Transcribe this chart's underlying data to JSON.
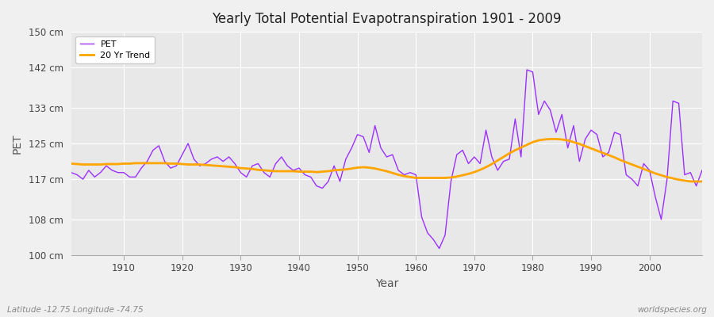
{
  "title": "Yearly Total Potential Evapotranspiration 1901 - 2009",
  "xlabel": "Year",
  "ylabel": "PET",
  "bottom_left_label": "Latitude -12.75 Longitude -74.75",
  "bottom_right_label": "worldspecies.org",
  "ylim": [
    100,
    150
  ],
  "yticks": [
    100,
    108,
    117,
    125,
    133,
    142,
    150
  ],
  "ytick_labels": [
    "100 cm",
    "108 cm",
    "117 cm",
    "125 cm",
    "133 cm",
    "142 cm",
    "150 cm"
  ],
  "xlim": [
    1901,
    2009
  ],
  "pet_color": "#9B30FF",
  "trend_color": "#FFA500",
  "bg_color": "#F0F0F0",
  "plot_bg_color": "#E8E8E8",
  "grid_color": "#FFFFFF",
  "legend_labels": [
    "PET",
    "20 Yr Trend"
  ],
  "xticks": [
    1910,
    1920,
    1930,
    1940,
    1950,
    1960,
    1970,
    1980,
    1990,
    2000
  ],
  "years": [
    1901,
    1902,
    1903,
    1904,
    1905,
    1906,
    1907,
    1908,
    1909,
    1910,
    1911,
    1912,
    1913,
    1914,
    1915,
    1916,
    1917,
    1918,
    1919,
    1920,
    1921,
    1922,
    1923,
    1924,
    1925,
    1926,
    1927,
    1928,
    1929,
    1930,
    1931,
    1932,
    1933,
    1934,
    1935,
    1936,
    1937,
    1938,
    1939,
    1940,
    1941,
    1942,
    1943,
    1944,
    1945,
    1946,
    1947,
    1948,
    1949,
    1950,
    1951,
    1952,
    1953,
    1954,
    1955,
    1956,
    1957,
    1958,
    1959,
    1960,
    1961,
    1962,
    1963,
    1964,
    1965,
    1966,
    1967,
    1968,
    1969,
    1970,
    1971,
    1972,
    1973,
    1974,
    1975,
    1976,
    1977,
    1978,
    1979,
    1980,
    1981,
    1982,
    1983,
    1984,
    1985,
    1986,
    1987,
    1988,
    1989,
    1990,
    1991,
    1992,
    1993,
    1994,
    1995,
    1996,
    1997,
    1998,
    1999,
    2000,
    2001,
    2002,
    2003,
    2004,
    2005,
    2006,
    2007,
    2008,
    2009
  ],
  "pet_values": [
    118.5,
    118.0,
    117.0,
    119.0,
    117.5,
    118.5,
    120.0,
    119.0,
    118.5,
    118.5,
    117.5,
    117.5,
    119.5,
    121.0,
    123.5,
    124.5,
    121.0,
    119.5,
    120.0,
    122.5,
    125.0,
    121.5,
    120.0,
    120.5,
    121.5,
    122.0,
    121.0,
    122.0,
    120.5,
    118.5,
    117.5,
    120.0,
    120.5,
    118.5,
    117.5,
    120.5,
    122.0,
    120.0,
    119.0,
    119.5,
    118.0,
    117.5,
    115.5,
    115.0,
    116.5,
    120.0,
    116.5,
    121.5,
    124.0,
    127.0,
    126.5,
    123.0,
    129.0,
    124.0,
    122.0,
    122.5,
    119.0,
    118.0,
    118.5,
    118.0,
    108.5,
    105.0,
    103.5,
    101.5,
    104.5,
    116.5,
    122.5,
    123.5,
    120.5,
    122.0,
    120.5,
    128.0,
    122.0,
    119.0,
    121.0,
    121.5,
    130.5,
    122.0,
    141.5,
    141.0,
    131.5,
    134.5,
    132.5,
    127.5,
    131.5,
    124.0,
    129.0,
    121.0,
    126.0,
    128.0,
    127.0,
    122.0,
    123.0,
    127.5,
    127.0,
    118.0,
    117.0,
    115.5,
    120.5,
    119.0,
    113.0,
    108.0,
    117.0,
    134.5,
    134.0,
    118.0,
    118.5,
    115.5,
    119.0
  ],
  "trend_values": [
    120.5,
    120.4,
    120.3,
    120.3,
    120.3,
    120.3,
    120.4,
    120.4,
    120.4,
    120.5,
    120.5,
    120.6,
    120.6,
    120.6,
    120.6,
    120.6,
    120.6,
    120.5,
    120.5,
    120.4,
    120.3,
    120.3,
    120.3,
    120.2,
    120.1,
    120.0,
    119.9,
    119.8,
    119.7,
    119.5,
    119.4,
    119.3,
    119.1,
    119.0,
    118.9,
    118.8,
    118.8,
    118.8,
    118.8,
    118.7,
    118.7,
    118.7,
    118.6,
    118.7,
    118.8,
    119.0,
    119.1,
    119.2,
    119.4,
    119.6,
    119.7,
    119.6,
    119.4,
    119.1,
    118.8,
    118.4,
    118.0,
    117.7,
    117.5,
    117.3,
    117.3,
    117.3,
    117.3,
    117.3,
    117.3,
    117.4,
    117.6,
    117.9,
    118.2,
    118.6,
    119.1,
    119.7,
    120.4,
    121.2,
    122.0,
    122.8,
    123.5,
    124.1,
    124.7,
    125.3,
    125.7,
    125.9,
    126.0,
    126.0,
    125.9,
    125.7,
    125.3,
    124.9,
    124.4,
    123.9,
    123.4,
    122.9,
    122.4,
    121.9,
    121.3,
    120.8,
    120.3,
    119.8,
    119.3,
    118.8,
    118.3,
    117.9,
    117.5,
    117.2,
    116.9,
    116.7,
    116.5,
    116.5,
    116.5
  ]
}
